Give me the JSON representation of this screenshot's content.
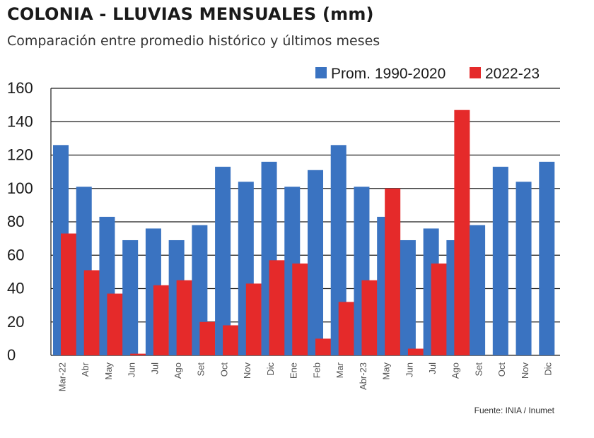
{
  "header": {
    "title": "COLONIA - LLUVIAS MENSUALES (mm)",
    "subtitle": "Comparación entre promedio histórico y últimos meses"
  },
  "footer": {
    "source": "Fuente: INIA / Inumet"
  },
  "colors": {
    "historic": "#3a73c1",
    "recent": "#e52a2a",
    "grid": "#1a1a1a",
    "text": "#1a1a1a",
    "ticklabel": "#555555"
  },
  "chart_data": {
    "type": "bar",
    "title": "COLONIA - LLUVIAS MENSUALES (mm)",
    "subtitle": "Comparación entre promedio histórico y últimos meses",
    "xlabel": "",
    "ylabel": "",
    "ylim": [
      0,
      160
    ],
    "yticks": [
      0,
      20,
      40,
      60,
      80,
      100,
      120,
      140,
      160
    ],
    "grid": true,
    "legend_position": "top-right",
    "categories": [
      "Mar-22",
      "Abr",
      "May",
      "Jun",
      "Jul",
      "Ago",
      "Set",
      "Oct",
      "Nov",
      "Dic",
      "Ene",
      "Feb",
      "Mar",
      "Abr-23",
      "May",
      "Jun",
      "Jul",
      "Ago",
      "Set",
      "Oct",
      "Nov",
      "Dic"
    ],
    "series": [
      {
        "name": "Prom. 1990-2020",
        "color": "#3a73c1",
        "values": [
          126,
          101,
          83,
          69,
          76,
          69,
          78,
          113,
          104,
          116,
          101,
          111,
          126,
          101,
          83,
          69,
          76,
          69,
          78,
          113,
          104,
          116
        ]
      },
      {
        "name": "2022-23",
        "color": "#e52a2a",
        "values": [
          73,
          51,
          37,
          1,
          42,
          45,
          20,
          18,
          43,
          57,
          55,
          10,
          32,
          45,
          100,
          4,
          55,
          147,
          null,
          null,
          null,
          null
        ]
      }
    ]
  }
}
